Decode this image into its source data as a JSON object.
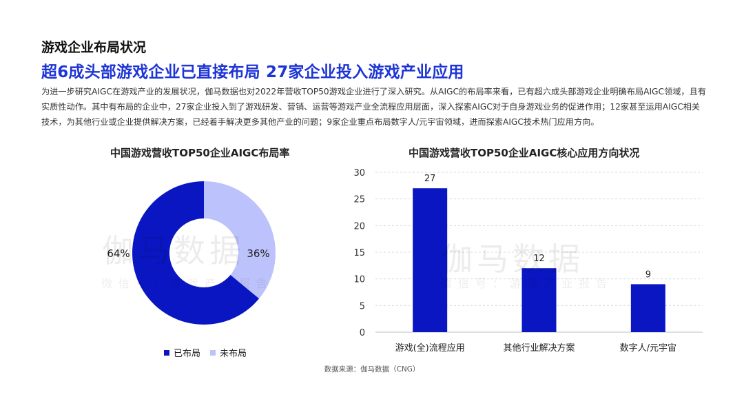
{
  "header": {
    "kicker": "游戏企业布局状况",
    "headline": "超6成头部游戏企业已直接布局   27家企业投入游戏产业应用",
    "body": "为进一步研究AIGC在游戏产业的发展状况，伽马数据也对2022年营收TOP50游戏企业进行了深入研究。从AIGC的布局率来看，已有超六成头部游戏企业明确布局AIGC领域，且有实质性动作。其中有布局的企业中，27家企业投入到了游戏研发、营销、运营等游戏产业全流程应用层面，深入探索AIGC对于自身游戏业务的促进作用；12家甚至运用AIGC相关技术，为其他行业或企业提供解决方案，已经着手解决更多其他产业的问题；9家企业重点布局数字人/元宇宙领域，进而探索AIGC技术热门应用方向。"
  },
  "watermark": {
    "main": "伽马数据",
    "sub": "微信号：游戏产业报告"
  },
  "source": "数据来源：伽马数据（CNG）",
  "chart_data": [
    {
      "type": "pie",
      "title": "中国游戏营收TOP50企业AIGC布局率",
      "labels": [
        "已布局",
        "未布局"
      ],
      "values": [
        64,
        36
      ],
      "value_labels": [
        "64%",
        "36%"
      ],
      "colors": [
        "#0a16c2",
        "#bcc2fb"
      ],
      "legend": "bottom"
    },
    {
      "type": "bar",
      "title": "中国游戏营收TOP50企业AIGC核心应用方向状况",
      "categories": [
        "游戏(全)流程应用",
        "其他行业解决方案",
        "数字人/元宇宙"
      ],
      "values": [
        27,
        12,
        9
      ],
      "ylim": [
        0,
        30
      ],
      "yticks": [
        "0",
        "5",
        "10",
        "15",
        "20",
        "25",
        "30"
      ],
      "color": "#0a16c2",
      "grid": true
    }
  ]
}
